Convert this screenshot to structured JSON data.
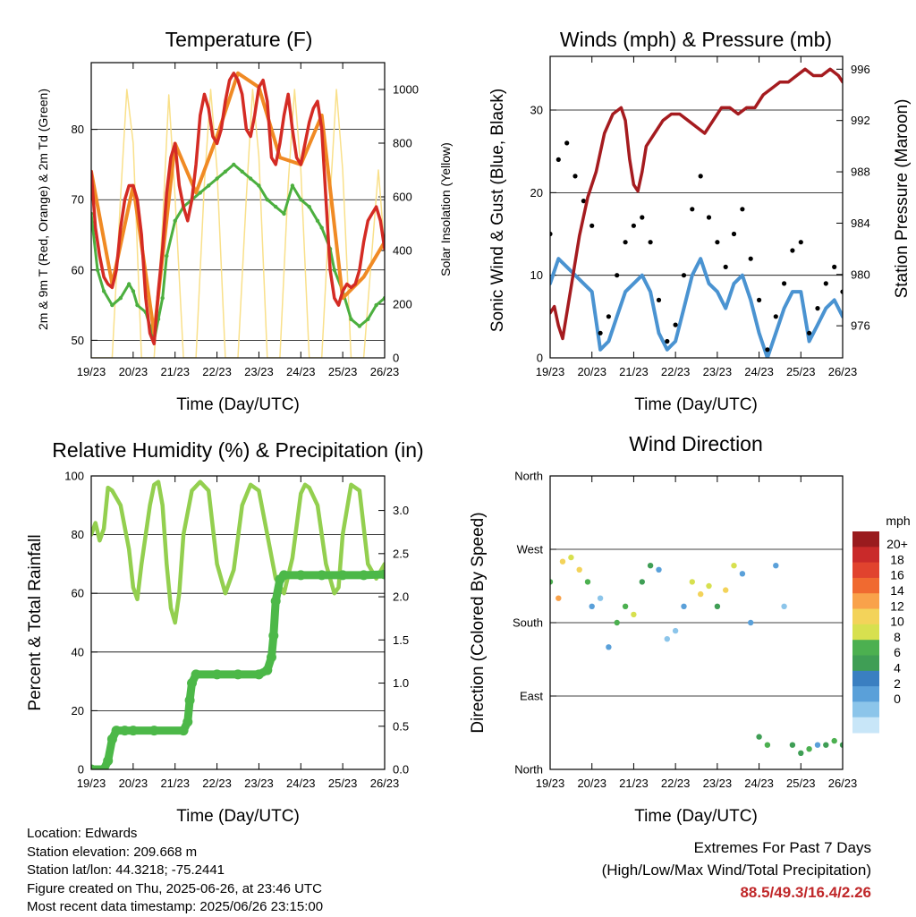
{
  "colors": {
    "temp2m": "#d42b24",
    "temp9m": "#f08a24",
    "dewpoint": "#4caf3f",
    "solar": "#f9e08a",
    "gust": "#000000",
    "wind": "#4a93d1",
    "pressure": "#a51b1f",
    "rh": "#93cf4f",
    "precip": "#4cb848",
    "grid": "#000000"
  },
  "x_ticks": [
    "19/23",
    "20/23",
    "21/23",
    "22/23",
    "23/23",
    "24/23",
    "25/23",
    "26/23"
  ],
  "footer": {
    "location": "Location: Edwards",
    "elevation": "Station elevation: 209.668 m",
    "latlon": "Station lat/lon: 44.3218; -75.2441",
    "created": "Figure created on Thu, 2025-06-26, at 23:46 UTC",
    "recent": "Most recent data timestamp: 2025/06/26 23:15:00",
    "extremes_title": "Extremes For Past 7 Days",
    "extremes_sub": "(High/Low/Max Wind/Total Precipitation)",
    "extremes_values": "88.5/49.3/16.4/2.26"
  },
  "chart_data": [
    {
      "type": "line",
      "title": "Temperature (F)",
      "xlabel": "Time (Day/UTC)",
      "ylabel": "2m & 9m T (Red, Orange) & 2m Td (Green)",
      "ylabel_right": "Solar Insolation (Yellow)",
      "xlim": [
        0,
        7
      ],
      "ylim": [
        47.5,
        89.5
      ],
      "yticks": [
        50,
        60,
        70,
        80
      ],
      "ylim_right": [
        0,
        1100
      ],
      "yticks_right": [
        0,
        200,
        400,
        600,
        800,
        1000
      ],
      "series": [
        {
          "name": "2m T",
          "color_key": "temp2m",
          "x": [
            0,
            0.1,
            0.2,
            0.3,
            0.4,
            0.5,
            0.6,
            0.7,
            0.8,
            0.9,
            1.0,
            1.1,
            1.2,
            1.3,
            1.4,
            1.5,
            1.6,
            1.7,
            1.8,
            1.9,
            2.0,
            2.1,
            2.2,
            2.3,
            2.4,
            2.5,
            2.6,
            2.7,
            2.8,
            2.9,
            3.0,
            3.1,
            3.2,
            3.3,
            3.4,
            3.5,
            3.6,
            3.7,
            3.8,
            3.9,
            4.0,
            4.1,
            4.2,
            4.3,
            4.4,
            4.5,
            4.6,
            4.7,
            4.8,
            4.9,
            5.0,
            5.1,
            5.2,
            5.3,
            5.4,
            5.5,
            5.6,
            5.7,
            5.8,
            5.9,
            6.0,
            6.1,
            6.2,
            6.3,
            6.4,
            6.5,
            6.6,
            6.7,
            6.8,
            6.9,
            7.0
          ],
          "y": [
            74,
            66,
            62,
            59,
            58,
            57.5,
            60,
            66,
            70,
            72,
            72,
            70,
            65,
            56,
            51,
            49.5,
            57,
            63,
            71,
            76,
            78,
            72,
            69,
            67,
            70,
            75,
            82,
            85,
            83,
            79,
            78,
            80,
            84,
            87,
            88,
            87,
            85,
            80,
            79,
            82,
            86,
            87,
            84,
            76,
            75,
            78,
            82,
            85,
            80,
            76,
            75,
            78,
            81,
            83,
            84,
            80,
            70,
            60,
            56,
            55,
            57,
            58,
            57.5,
            58,
            60,
            64,
            67,
            68,
            69,
            67,
            63
          ]
        },
        {
          "name": "9m T",
          "color_key": "temp9m",
          "x": [
            0,
            0.5,
            1.0,
            1.5,
            2.0,
            2.5,
            3.0,
            3.5,
            4.0,
            4.5,
            5.0,
            5.5,
            6.0,
            6.5,
            7.0
          ],
          "y": [
            74,
            58,
            72,
            51,
            78,
            71,
            79,
            88,
            86,
            76,
            75,
            82,
            56,
            59,
            64
          ]
        },
        {
          "name": "2m Td",
          "color_key": "dewpoint",
          "x": [
            0,
            0.15,
            0.3,
            0.5,
            0.7,
            0.9,
            1.0,
            1.1,
            1.3,
            1.4,
            1.5,
            1.6,
            1.7,
            1.8,
            2.0,
            2.2,
            2.4,
            2.6,
            2.8,
            3.0,
            3.2,
            3.4,
            3.6,
            3.8,
            4.0,
            4.2,
            4.4,
            4.6,
            4.8,
            5.0,
            5.2,
            5.4,
            5.5,
            5.7,
            5.8,
            6.0,
            6.2,
            6.4,
            6.6,
            6.8,
            7.0
          ],
          "y": [
            68,
            60,
            57,
            55,
            56,
            58,
            57,
            55,
            54,
            52,
            50,
            53,
            56,
            62,
            67,
            69,
            70,
            71,
            72,
            73,
            74,
            75,
            74,
            73,
            72,
            70,
            69,
            68,
            72,
            70,
            69,
            67,
            66,
            63,
            60,
            57,
            53,
            52,
            53,
            55,
            56
          ]
        },
        {
          "name": "Solar Insolation",
          "color_key": "solar",
          "axis": "right",
          "x": [
            0,
            0.5,
            0.7,
            0.85,
            1.0,
            1.2,
            1.5,
            1.7,
            1.85,
            2.0,
            2.2,
            2.5,
            2.7,
            2.85,
            3.0,
            3.2,
            3.5,
            3.7,
            3.85,
            4.0,
            4.2,
            4.5,
            4.7,
            4.85,
            5.0,
            5.2,
            5.5,
            5.7,
            5.85,
            6.0,
            6.2,
            6.5,
            6.7,
            6.85,
            7.0
          ],
          "y": [
            0,
            0,
            600,
            1000,
            800,
            0,
            0,
            500,
            980,
            600,
            0,
            0,
            650,
            1000,
            700,
            0,
            0,
            600,
            1000,
            750,
            0,
            0,
            650,
            1000,
            700,
            0,
            0,
            600,
            1000,
            700,
            0,
            0,
            400,
            700,
            400
          ]
        }
      ]
    },
    {
      "type": "scatter",
      "title": "Winds (mph) & Pressure (mb)",
      "xlabel": "Time (Day/UTC)",
      "ylabel": "Sonic Wind & Gust (Blue, Black)",
      "ylabel_right": "Station Pressure (Maroon)",
      "xlim": [
        0,
        7
      ],
      "ylim": [
        0,
        36.5
      ],
      "yticks": [
        0,
        10,
        20,
        30
      ],
      "ylim_right": [
        973.5,
        997
      ],
      "yticks_right": [
        976,
        980,
        984,
        988,
        992,
        996
      ],
      "series": [
        {
          "name": "Gust",
          "color_key": "gust",
          "x": [
            0,
            0.2,
            0.4,
            0.6,
            0.8,
            1.0,
            1.2,
            1.4,
            1.6,
            1.8,
            2.0,
            2.2,
            2.4,
            2.6,
            2.8,
            3.0,
            3.2,
            3.4,
            3.6,
            3.8,
            4.0,
            4.2,
            4.4,
            4.6,
            4.8,
            5.0,
            5.2,
            5.4,
            5.6,
            5.8,
            6.0,
            6.2,
            6.4,
            6.6,
            6.8,
            7.0
          ],
          "y": [
            15,
            24,
            26,
            22,
            19,
            16,
            3,
            5,
            10,
            14,
            16,
            17,
            14,
            7,
            2,
            4,
            10,
            18,
            22,
            17,
            14,
            11,
            15,
            18,
            12,
            7,
            1,
            5,
            9,
            13,
            14,
            3,
            6,
            9,
            11,
            8
          ]
        },
        {
          "name": "Wind",
          "color_key": "wind",
          "x": [
            0,
            0.2,
            0.4,
            0.6,
            0.8,
            1.0,
            1.2,
            1.4,
            1.6,
            1.8,
            2.0,
            2.2,
            2.4,
            2.6,
            2.8,
            3.0,
            3.2,
            3.4,
            3.6,
            3.8,
            4.0,
            4.2,
            4.4,
            4.6,
            4.8,
            5.0,
            5.2,
            5.4,
            5.6,
            5.8,
            6.0,
            6.2,
            6.4,
            6.6,
            6.8,
            7.0
          ],
          "y": [
            9,
            12,
            11,
            10,
            9,
            8,
            1,
            2,
            5,
            8,
            9,
            10,
            8,
            3,
            1,
            2,
            6,
            10,
            12,
            9,
            8,
            6,
            9,
            10,
            7,
            3,
            0,
            3,
            6,
            8,
            8,
            2,
            4,
            6,
            7,
            5
          ]
        },
        {
          "name": "Pressure",
          "color_key": "pressure",
          "axis": "right",
          "x": [
            0,
            0.1,
            0.2,
            0.3,
            0.5,
            0.7,
            0.9,
            1.1,
            1.3,
            1.5,
            1.7,
            1.8,
            1.9,
            2.0,
            2.1,
            2.2,
            2.3,
            2.5,
            2.7,
            2.9,
            3.1,
            3.3,
            3.5,
            3.7,
            3.9,
            4.1,
            4.3,
            4.5,
            4.7,
            4.9,
            5.1,
            5.3,
            5.5,
            5.7,
            5.9,
            6.1,
            6.3,
            6.5,
            6.7,
            6.9,
            7.0
          ],
          "y": [
            977,
            977.5,
            976,
            975,
            979,
            983,
            986,
            988,
            991,
            992.5,
            993,
            992,
            989,
            987,
            986.5,
            988,
            990,
            991,
            992,
            992.5,
            992.5,
            992,
            991.5,
            991,
            992,
            993,
            993,
            992.5,
            993,
            993,
            994,
            994.5,
            995,
            995,
            995.5,
            996,
            995.5,
            995.5,
            996,
            995.5,
            995
          ]
        }
      ]
    },
    {
      "type": "line",
      "title": "Relative Humidity (%) & Precipitation (in)",
      "xlabel": "Time (Day/UTC)",
      "ylabel": "Percent & Total Rainfall",
      "xlim": [
        0,
        7
      ],
      "ylim": [
        0,
        100
      ],
      "yticks": [
        0,
        20,
        40,
        60,
        80,
        100
      ],
      "ylim_right": [
        0,
        3.4
      ],
      "yticks_right": [
        0.0,
        0.5,
        1.0,
        1.5,
        2.0,
        2.5,
        3.0
      ],
      "series": [
        {
          "name": "Relative Humidity",
          "color_key": "rh",
          "x": [
            0,
            0.1,
            0.2,
            0.3,
            0.4,
            0.5,
            0.7,
            0.9,
            1.0,
            1.1,
            1.2,
            1.4,
            1.5,
            1.6,
            1.7,
            1.8,
            1.9,
            2.0,
            2.1,
            2.2,
            2.4,
            2.6,
            2.8,
            3.0,
            3.2,
            3.4,
            3.6,
            3.8,
            4.0,
            4.2,
            4.4,
            4.6,
            4.8,
            5.0,
            5.1,
            5.2,
            5.4,
            5.6,
            5.8,
            5.9,
            6.0,
            6.2,
            6.4,
            6.6,
            6.8,
            7.0
          ],
          "y": [
            80,
            84,
            78,
            82,
            96,
            95,
            90,
            75,
            62,
            58,
            70,
            90,
            97,
            98,
            90,
            70,
            55,
            50,
            60,
            80,
            95,
            98,
            95,
            70,
            60,
            68,
            90,
            97,
            95,
            80,
            65,
            60,
            72,
            94,
            97,
            96,
            90,
            70,
            60,
            62,
            80,
            97,
            95,
            70,
            65,
            70
          ]
        },
        {
          "name": "Total Precipitation",
          "color_key": "precip",
          "axis": "right",
          "x": [
            0,
            0.3,
            0.4,
            0.5,
            0.6,
            0.8,
            1.0,
            1.5,
            2.2,
            2.3,
            2.35,
            2.4,
            2.5,
            3.0,
            3.5,
            4.0,
            4.2,
            4.3,
            4.35,
            4.4,
            4.5,
            4.6,
            5.0,
            5.5,
            6.0,
            6.5,
            7.0
          ],
          "y": [
            0,
            0,
            0.1,
            0.35,
            0.45,
            0.45,
            0.45,
            0.45,
            0.45,
            0.55,
            0.8,
            1.0,
            1.1,
            1.1,
            1.1,
            1.1,
            1.15,
            1.3,
            1.55,
            1.95,
            2.2,
            2.25,
            2.25,
            2.25,
            2.25,
            2.25,
            2.26
          ]
        }
      ]
    },
    {
      "type": "scatter",
      "title": "Wind Direction",
      "xlabel": "Time (Day/UTC)",
      "ylabel": "Direction (Colored By Speed)",
      "xlim": [
        0,
        7
      ],
      "ylim": [
        0,
        360
      ],
      "ytick_values": [
        0,
        90,
        180,
        270,
        360
      ],
      "ytick_labels": [
        "North",
        "East",
        "South",
        "West",
        "North"
      ],
      "colorbar": {
        "label": "mph",
        "ticks": [
          "20+",
          "18",
          "16",
          "14",
          "12",
          "10",
          "8",
          "6",
          "4",
          "2",
          "0"
        ],
        "colors": [
          "#9a1b1e",
          "#c92a2a",
          "#e1432e",
          "#f06a30",
          "#f9a24a",
          "#f3d35a",
          "#d7e04f",
          "#4cb050",
          "#3f9e55",
          "#3a7fc1",
          "#5aa0d9",
          "#8cc5ea",
          "#c8e6f8"
        ]
      },
      "series": [
        {
          "name": "Direction",
          "x": [
            0,
            0.2,
            0.3,
            0.5,
            0.7,
            0.9,
            1.0,
            1.2,
            1.4,
            1.6,
            1.8,
            2.0,
            2.2,
            2.4,
            2.6,
            2.8,
            3.0,
            3.2,
            3.4,
            3.6,
            3.8,
            4.0,
            4.2,
            4.4,
            4.6,
            4.8,
            5.0,
            5.2,
            5.4,
            5.6,
            5.8,
            6.0,
            6.2,
            6.4,
            6.6,
            6.8,
            7.0
          ],
          "y": [
            230,
            210,
            255,
            260,
            245,
            230,
            200,
            210,
            150,
            180,
            200,
            190,
            230,
            250,
            245,
            160,
            170,
            200,
            230,
            215,
            225,
            200,
            220,
            250,
            240,
            180,
            40,
            30,
            250,
            200,
            30,
            20,
            25,
            30,
            30,
            35,
            30
          ],
          "speed": [
            8,
            14,
            12,
            10,
            12,
            8,
            4,
            2,
            4,
            8,
            8,
            10,
            6,
            6,
            4,
            2,
            2,
            4,
            10,
            12,
            10,
            6,
            12,
            10,
            4,
            4,
            6,
            8,
            4,
            2,
            6,
            6,
            8,
            4,
            6,
            8,
            6
          ]
        }
      ]
    }
  ]
}
